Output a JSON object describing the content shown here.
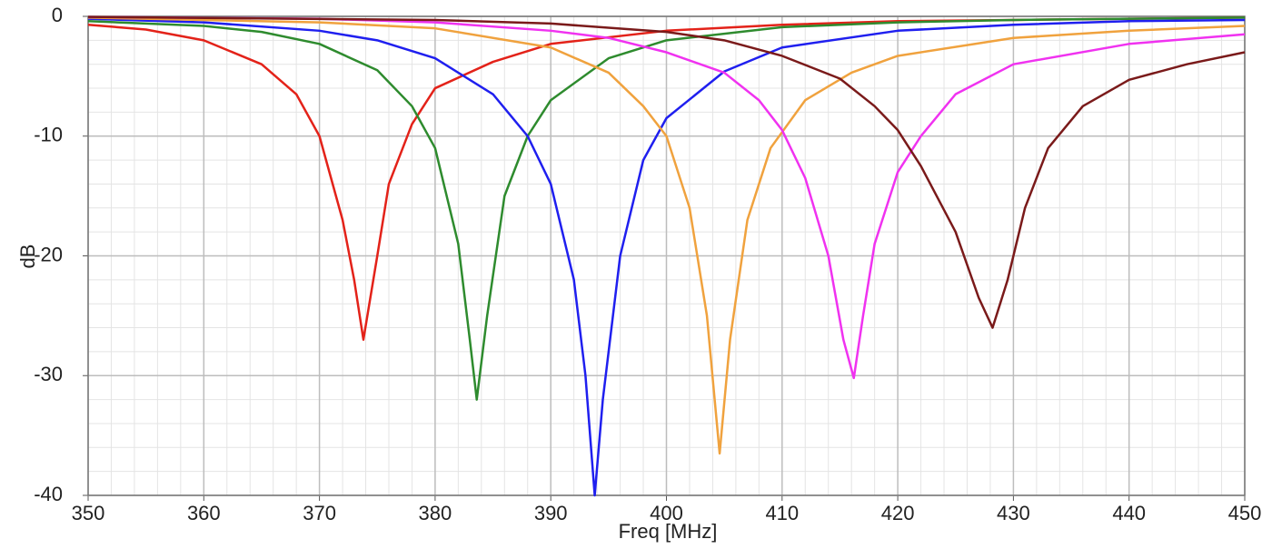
{
  "chart_data": {
    "type": "line",
    "xlabel": "Freq [MHz]",
    "ylabel": "dB",
    "xlim": [
      350,
      450
    ],
    "xticks": [
      350,
      360,
      370,
      380,
      390,
      400,
      410,
      420,
      430,
      440,
      450
    ],
    "ylim": [
      -40,
      0
    ],
    "yticks": [
      -40,
      -30,
      -20,
      -10,
      0
    ],
    "grid": true,
    "series": [
      {
        "color": "#e32219",
        "x": [
          350,
          355,
          360,
          365,
          368,
          370,
          372,
          373,
          373.8,
          375,
          376,
          378,
          380,
          385,
          390,
          400,
          410,
          420,
          430,
          450
        ],
        "values": [
          -0.7,
          -1.1,
          -2,
          -4,
          -6.5,
          -10,
          -17,
          -22,
          -27,
          -20,
          -14,
          -9,
          -6,
          -3.8,
          -2.3,
          -1.2,
          -0.7,
          -0.4,
          -0.3,
          -0.1
        ]
      },
      {
        "color": "#2e8b2e",
        "x": [
          350,
          360,
          365,
          370,
          375,
          378,
          380,
          382,
          383,
          383.6,
          384.5,
          386,
          388,
          390,
          395,
          400,
          410,
          420,
          430,
          440,
          450
        ],
        "values": [
          -0.4,
          -0.8,
          -1.3,
          -2.3,
          -4.5,
          -7.5,
          -11,
          -19,
          -27,
          -32,
          -25,
          -15,
          -10,
          -7,
          -3.5,
          -2,
          -0.9,
          -0.5,
          -0.3,
          -0.2,
          -0.1
        ]
      },
      {
        "color": "#1f1fef",
        "x": [
          350,
          360,
          370,
          375,
          380,
          385,
          388,
          390,
          392,
          393,
          393.8,
          394.5,
          396,
          398,
          400,
          405,
          410,
          420,
          430,
          440,
          450
        ],
        "values": [
          -0.2,
          -0.5,
          -1.2,
          -2,
          -3.5,
          -6.5,
          -10,
          -14,
          -22,
          -30,
          -40,
          -32,
          -20,
          -12,
          -8.5,
          -4.6,
          -2.6,
          -1.2,
          -0.7,
          -0.4,
          -0.3
        ]
      },
      {
        "color": "#f0a23e",
        "x": [
          350,
          370,
          380,
          390,
          395,
          398,
          400,
          402,
          403.5,
          404.6,
          405.5,
          407,
          409,
          412,
          416,
          420,
          430,
          440,
          450
        ],
        "values": [
          -0.1,
          -0.5,
          -1,
          -2.6,
          -4.7,
          -7.5,
          -10,
          -16,
          -25,
          -36.5,
          -27,
          -17,
          -11,
          -7,
          -4.7,
          -3.3,
          -1.8,
          -1.2,
          -0.8
        ]
      },
      {
        "color": "#f032f0",
        "x": [
          350,
          370,
          380,
          390,
          395,
          400,
          405,
          408,
          410,
          412,
          414,
          415.3,
          416.2,
          417,
          418,
          420,
          422,
          425,
          430,
          440,
          450
        ],
        "values": [
          -0.05,
          -0.2,
          -0.5,
          -1.2,
          -1.8,
          -3,
          -4.7,
          -7,
          -9.5,
          -13.5,
          -20,
          -27,
          -30.2,
          -25,
          -19,
          -13,
          -10,
          -6.5,
          -4,
          -2.3,
          -1.5
        ]
      },
      {
        "color": "#7a1a1a",
        "x": [
          350,
          380,
          390,
          400,
          405,
          410,
          415,
          418,
          420,
          422,
          425,
          427,
          428.2,
          429.5,
          431,
          433,
          436,
          440,
          445,
          450
        ],
        "values": [
          -0.05,
          -0.3,
          -0.6,
          -1.3,
          -2,
          -3.3,
          -5.2,
          -7.5,
          -9.5,
          -12.5,
          -18,
          -23.5,
          -26,
          -22,
          -16,
          -11,
          -7.5,
          -5.3,
          -4,
          -3
        ]
      }
    ]
  }
}
